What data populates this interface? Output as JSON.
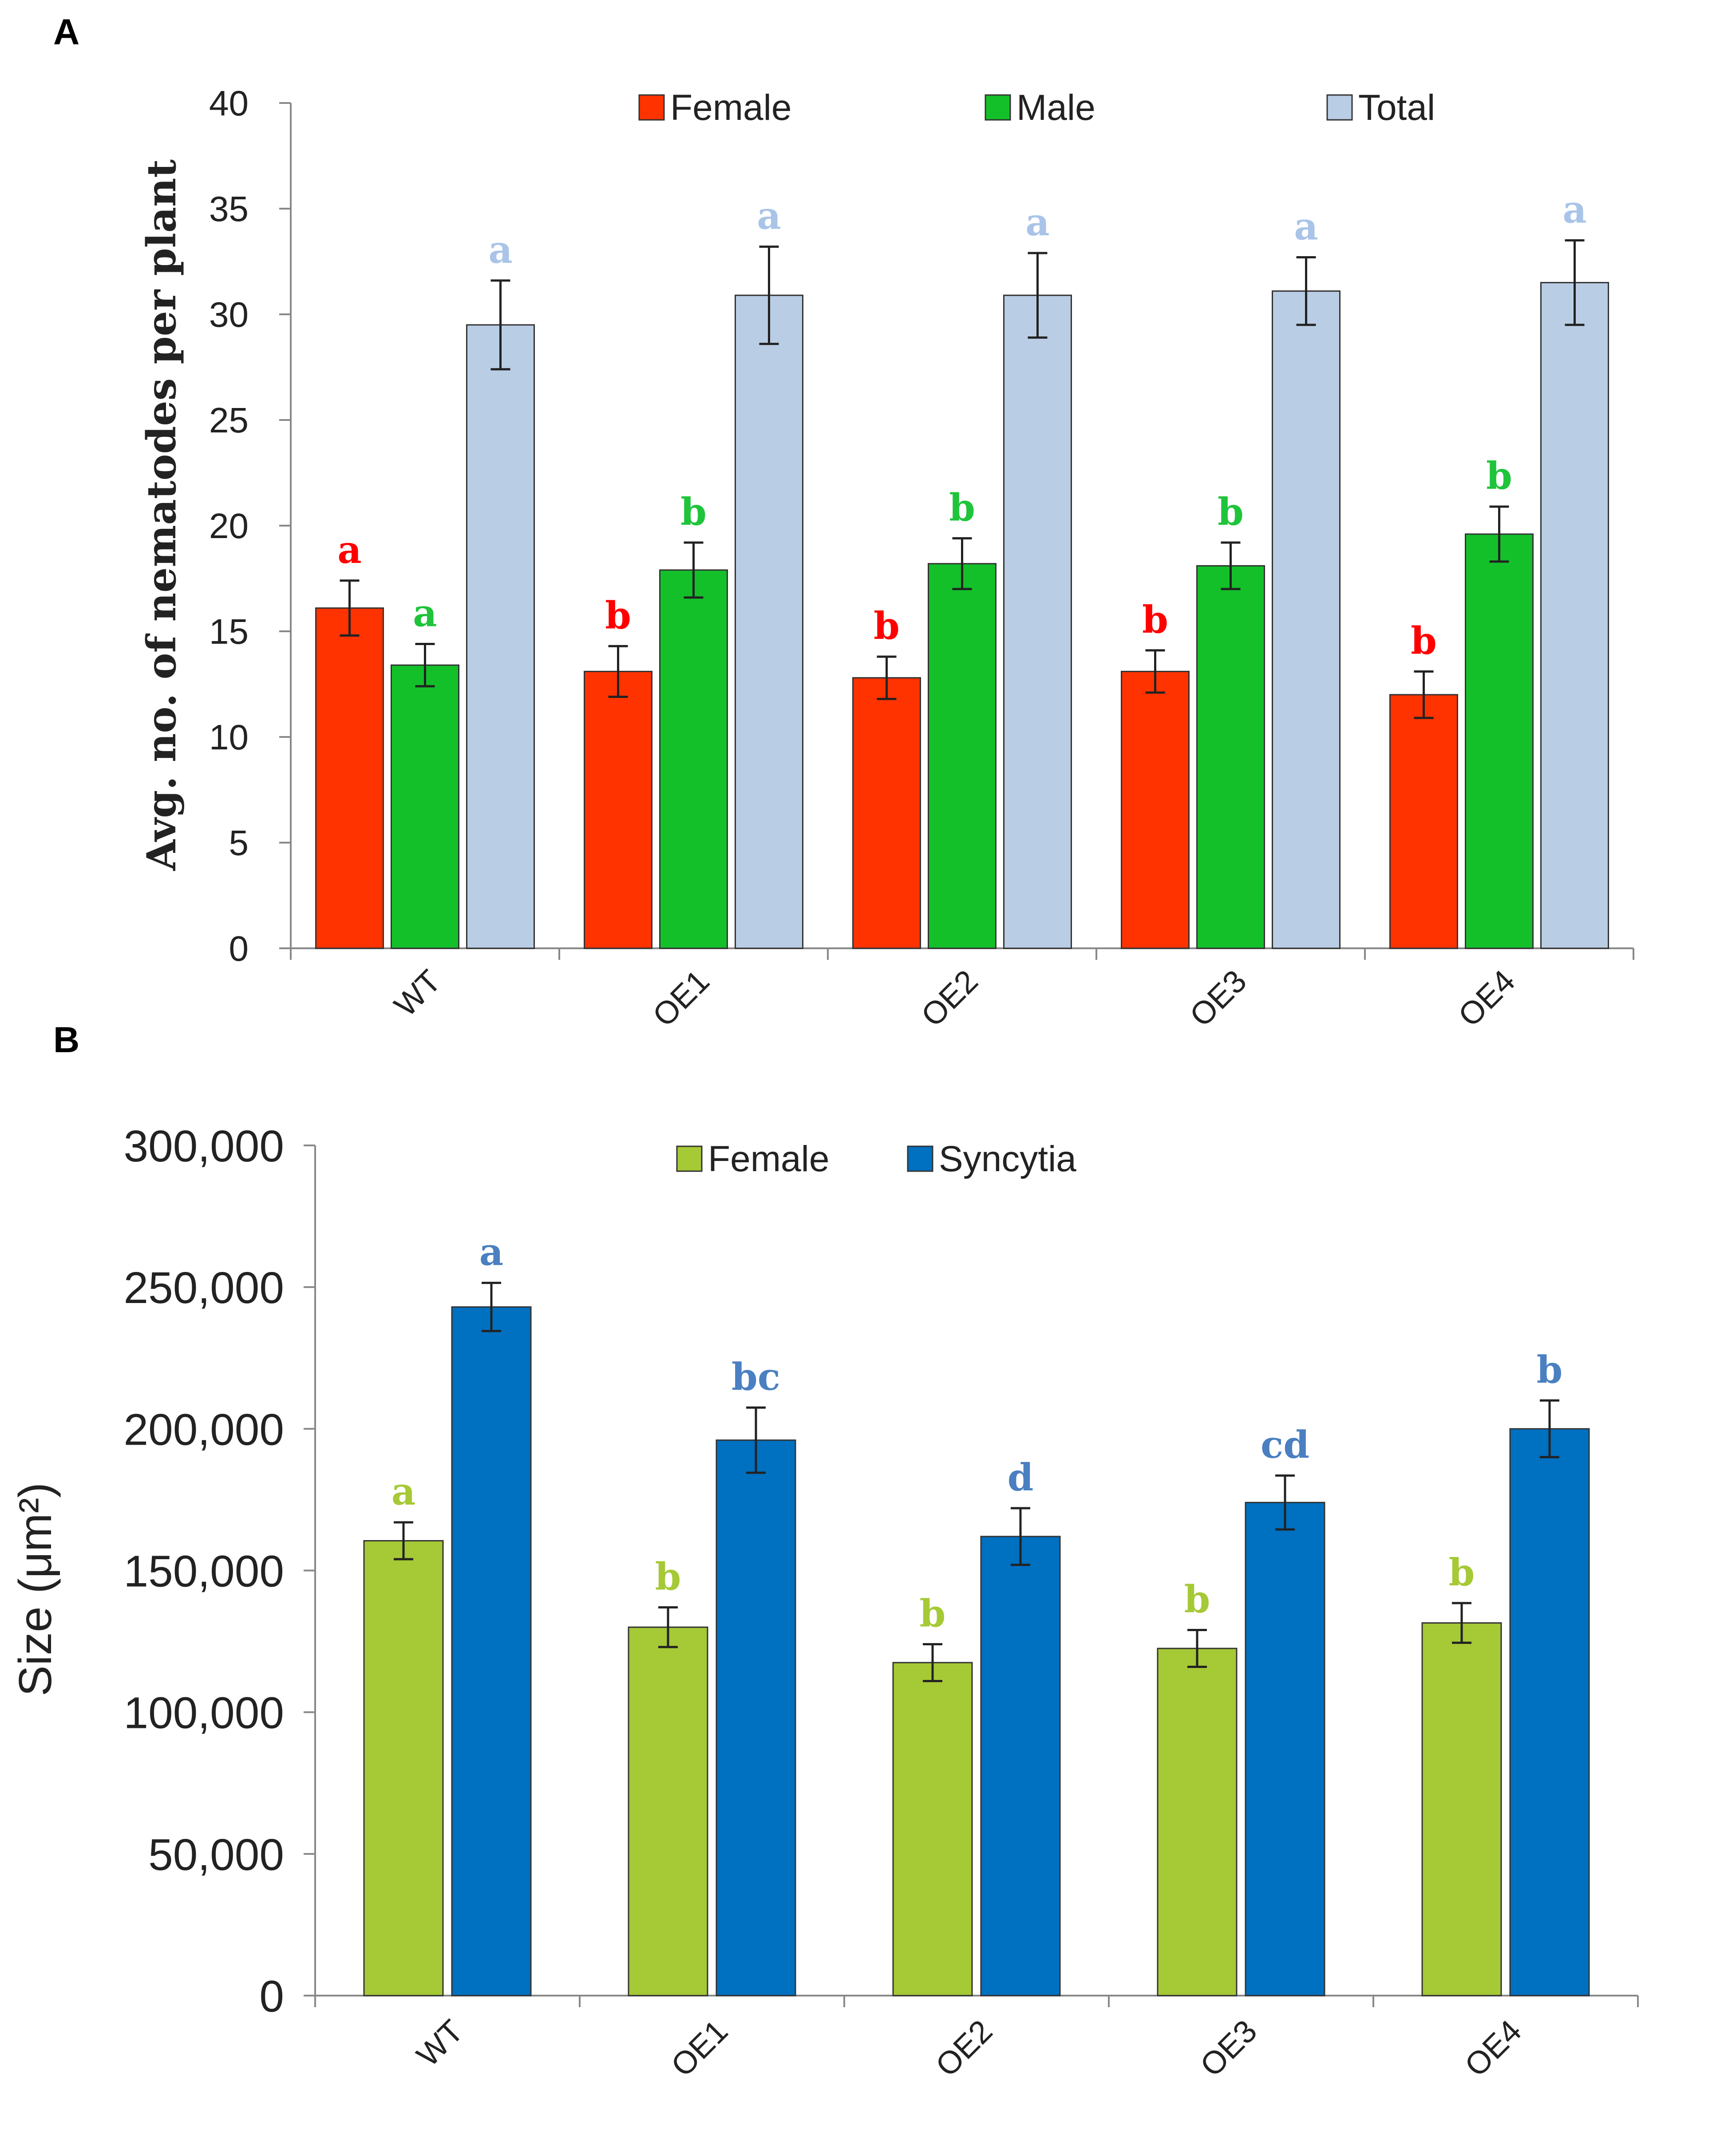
{
  "panels": [
    {
      "letter": "A",
      "chart_data": {
        "type": "bar",
        "title": "",
        "xlabel": "",
        "ylabel": "Avg. no. of nematodes per plant",
        "ylim": [
          0,
          40
        ],
        "yticks": [
          0,
          5,
          10,
          15,
          20,
          25,
          30,
          35,
          40
        ],
        "ytick_labels": [
          "0",
          "5",
          "10",
          "15",
          "20",
          "25",
          "30",
          "35",
          "40"
        ],
        "categories": [
          "WT",
          "OE1",
          "OE2",
          "OE3",
          "OE4"
        ],
        "legend_position": "top",
        "series": [
          {
            "name": "Female",
            "color": "#ff3300",
            "label_color": "#ff0000",
            "values": [
              16.1,
              13.1,
              12.8,
              13.1,
              12.0
            ],
            "errors": [
              1.3,
              1.2,
              1.0,
              1.0,
              1.1
            ],
            "significance": [
              "a",
              "b",
              "b",
              "b",
              "b"
            ]
          },
          {
            "name": "Male",
            "color": "#13c02a",
            "label_color": "#1fc43a",
            "values": [
              13.4,
              17.9,
              18.2,
              18.1,
              19.6
            ],
            "errors": [
              1.0,
              1.3,
              1.2,
              1.1,
              1.3
            ],
            "significance": [
              "a",
              "b",
              "b",
              "b",
              "b"
            ]
          },
          {
            "name": "Total",
            "color": "#b9cde5",
            "label_color": "#a9c4e8",
            "values": [
              29.5,
              30.9,
              30.9,
              31.1,
              31.5
            ],
            "errors": [
              2.1,
              2.3,
              2.0,
              1.6,
              2.0
            ],
            "significance": [
              "a",
              "a",
              "a",
              "a",
              "a"
            ]
          }
        ]
      }
    },
    {
      "letter": "B",
      "chart_data": {
        "type": "bar",
        "title": "",
        "xlabel": "",
        "ylabel": "Size (μm²)",
        "ylim": [
          0,
          300000
        ],
        "yticks": [
          0,
          50000,
          100000,
          150000,
          200000,
          250000,
          300000
        ],
        "ytick_labels": [
          "0",
          "50,000",
          "100,000",
          "150,000",
          "200,000",
          "250,000",
          "300,000"
        ],
        "categories": [
          "WT",
          "OE1",
          "OE2",
          "OE3",
          "OE4"
        ],
        "legend_position": "top",
        "series": [
          {
            "name": "Female",
            "color": "#a6c936",
            "label_color": "#a6c936",
            "values": [
              160500,
              130000,
              117500,
              122500,
              131500
            ],
            "errors": [
              6500,
              7000,
              6500,
              6500,
              7000
            ],
            "significance": [
              "a",
              "b",
              "b",
              "b",
              "b"
            ]
          },
          {
            "name": "Syncytia",
            "color": "#0070c0",
            "label_color": "#4a7fc1",
            "values": [
              243000,
              196000,
              162000,
              174000,
              200000
            ],
            "errors": [
              8500,
              11500,
              10000,
              9500,
              10000
            ],
            "significance": [
              "a",
              "bc",
              "d",
              "cd",
              "b"
            ]
          }
        ]
      }
    }
  ]
}
